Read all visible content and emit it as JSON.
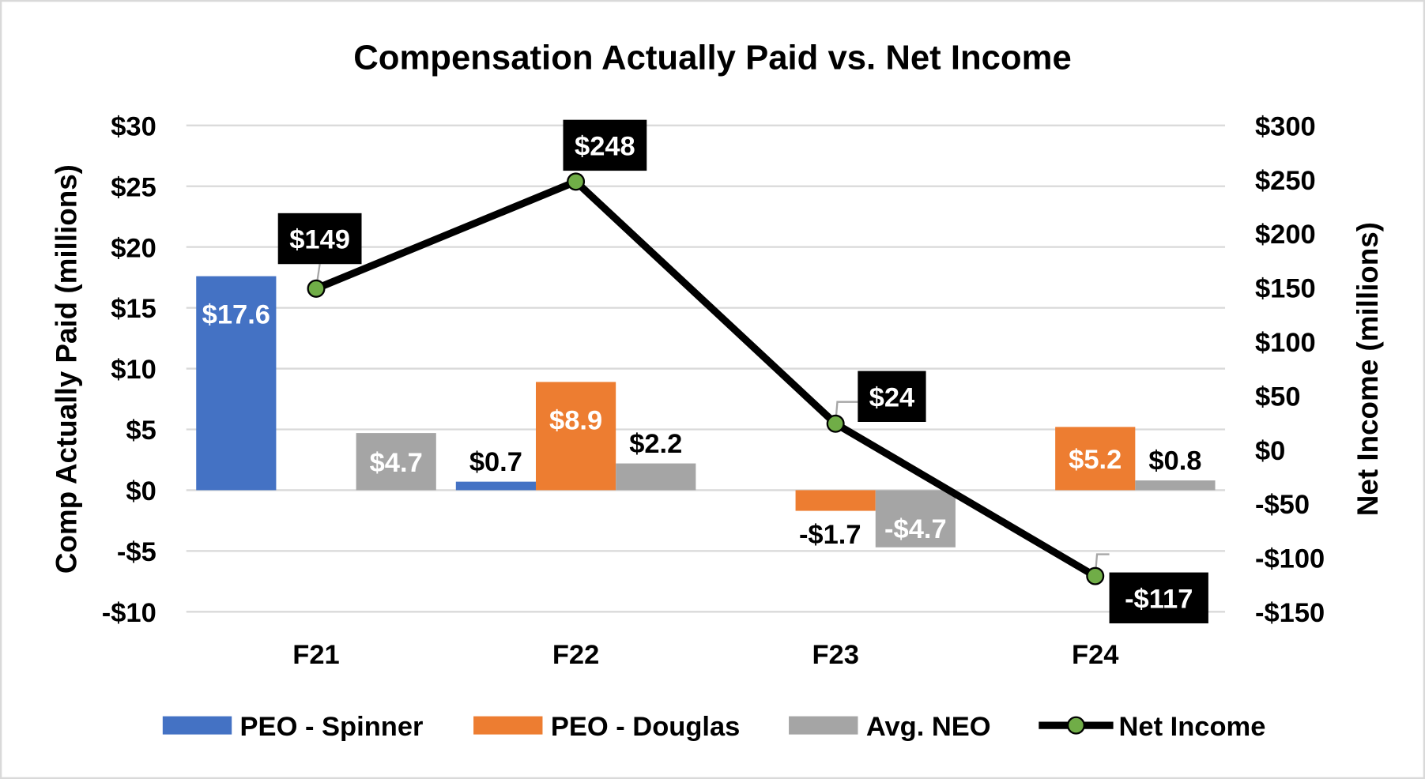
{
  "chart_data": {
    "type": "bar",
    "title": "Compensation Actually Paid vs. Net Income",
    "categories": [
      "F21",
      "F22",
      "F23",
      "F24"
    ],
    "ylabel": "Comp Actually Paid (millions)",
    "y2label": "Net Income (millions)",
    "ylim": [
      -10,
      30
    ],
    "y2lim": [
      -150,
      300
    ],
    "yticks": [
      -10,
      -5,
      0,
      5,
      10,
      15,
      20,
      25,
      30
    ],
    "yticklabels": [
      "-$10",
      "-$5",
      "$0",
      "$5",
      "$10",
      "$15",
      "$20",
      "$25",
      "$30"
    ],
    "y2ticks": [
      -150,
      -100,
      -50,
      0,
      50,
      100,
      150,
      200,
      250,
      300
    ],
    "y2ticklabels": [
      "-$150",
      "-$100",
      "-$50",
      "$0",
      "$50",
      "$100",
      "$150",
      "$200",
      "$250",
      "$300"
    ],
    "grid": true,
    "legend_position": "bottom",
    "series": [
      {
        "name": "PEO - Spinner",
        "kind": "bar",
        "color": "#4472C4",
        "values": [
          17.6,
          0.7,
          null,
          null
        ],
        "labels": [
          "$17.6",
          "$0.7",
          null,
          null
        ]
      },
      {
        "name": "PEO - Douglas",
        "kind": "bar",
        "color": "#ED7D31",
        "values": [
          null,
          8.9,
          -1.7,
          5.2
        ],
        "labels": [
          null,
          "$8.9",
          "-$1.7",
          "$5.2"
        ]
      },
      {
        "name": "Avg. NEO",
        "kind": "bar",
        "color": "#A5A5A5",
        "values": [
          4.7,
          2.2,
          -4.7,
          0.8
        ],
        "labels": [
          "$4.7",
          "$2.2",
          "-$4.7",
          "$0.8"
        ]
      },
      {
        "name": "Net Income",
        "kind": "line",
        "axis": "right",
        "color": "#000000",
        "marker_color": "#70AD47",
        "values": [
          149,
          248,
          24,
          -117
        ],
        "labels": [
          "$149",
          "$248",
          "$24",
          "-$117"
        ]
      }
    ]
  }
}
